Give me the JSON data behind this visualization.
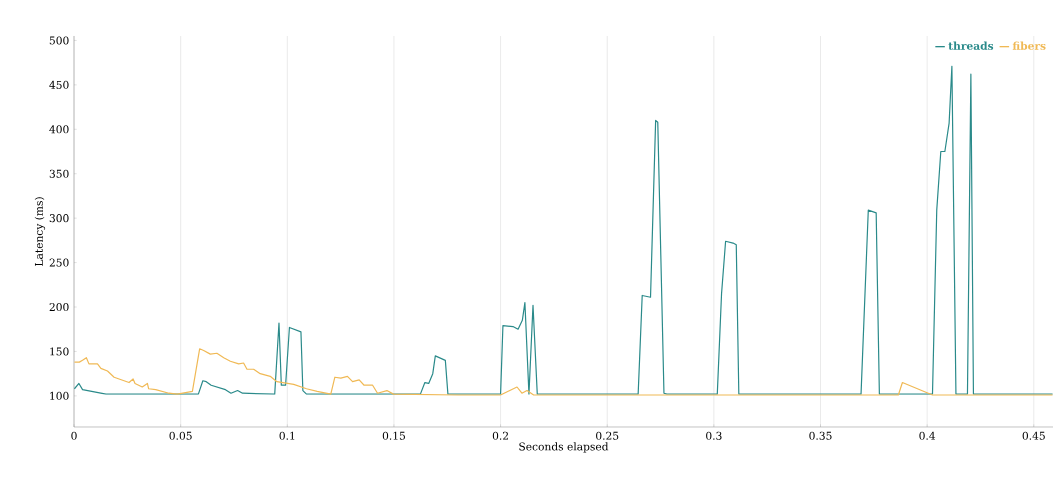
{
  "chart_data": {
    "type": "line",
    "xlabel": "Seconds elapsed",
    "ylabel": "Latency (ms)",
    "xlim": [
      0,
      0.459
    ],
    "ylim": [
      65,
      505
    ],
    "xticks": [
      0,
      0.05,
      0.1,
      0.15,
      0.2,
      0.25,
      0.3,
      0.35,
      0.4,
      0.45
    ],
    "yticks": [
      100,
      150,
      200,
      250,
      300,
      350,
      400,
      450,
      500
    ],
    "grid": "x",
    "legend": "top right",
    "marker": "none",
    "line_style": "solid",
    "series": [
      {
        "name": "threads",
        "color": "#2a8a8a",
        "x": [
          0.0002,
          0.0023,
          0.004,
          0.015,
          0.03,
          0.045,
          0.0583,
          0.0604,
          0.062,
          0.0643,
          0.071,
          0.0736,
          0.0767,
          0.079,
          0.0941,
          0.0961,
          0.0972,
          0.0992,
          0.101,
          0.1064,
          0.1073,
          0.109,
          0.13,
          0.1624,
          0.1645,
          0.1663,
          0.1682,
          0.1694,
          0.1741,
          0.1753,
          0.2,
          0.2011,
          0.2058,
          0.2082,
          0.2102,
          0.2114,
          0.2133,
          0.2152,
          0.2172,
          0.24,
          0.2645,
          0.2664,
          0.2703,
          0.2727,
          0.2737,
          0.2766,
          0.278,
          0.3016,
          0.3036,
          0.3055,
          0.309,
          0.3105,
          0.3117,
          0.369,
          0.3724,
          0.3761,
          0.3776,
          0.4025,
          0.4045,
          0.4064,
          0.4083,
          0.4103,
          0.4116,
          0.4135,
          0.4189,
          0.4205,
          0.4217,
          0.4588
        ],
        "values": [
          108,
          114,
          107,
          102,
          102,
          102,
          102,
          117,
          116,
          112,
          107,
          103,
          106,
          103,
          102,
          182,
          112,
          112,
          177,
          172,
          106,
          102,
          102,
          102,
          115,
          114,
          125,
          145,
          140,
          102,
          102,
          179,
          178,
          175,
          185,
          205,
          102,
          202,
          102,
          102,
          102,
          213,
          211,
          410,
          408,
          103,
          102,
          102,
          215,
          274,
          272,
          270,
          102,
          102,
          309,
          306,
          102,
          102,
          309,
          375,
          375,
          407,
          471,
          102,
          102,
          462,
          102,
          102
        ]
      },
      {
        "name": "fibers",
        "color": "#f0b955",
        "x": [
          0.0002,
          0.0025,
          0.004,
          0.0058,
          0.007,
          0.011,
          0.0126,
          0.0157,
          0.0188,
          0.0258,
          0.0277,
          0.0286,
          0.032,
          0.0344,
          0.035,
          0.0383,
          0.0414,
          0.0445,
          0.0484,
          0.0555,
          0.0589,
          0.0608,
          0.0639,
          0.067,
          0.0702,
          0.0733,
          0.0772,
          0.0795,
          0.0811,
          0.0842,
          0.0873,
          0.092,
          0.0951,
          0.103,
          0.109,
          0.114,
          0.1204,
          0.1223,
          0.1251,
          0.1282,
          0.1306,
          0.1337,
          0.136,
          0.14,
          0.1423,
          0.1467,
          0.1498,
          0.18,
          0.2,
          0.2077,
          0.21,
          0.2124,
          0.2155,
          0.3,
          0.3865,
          0.3884,
          0.4025,
          0.4588
        ],
        "values": [
          138,
          138,
          140,
          143,
          136,
          136,
          131,
          128,
          121,
          115,
          119,
          114,
          110,
          114,
          108,
          107,
          105,
          103,
          102,
          105,
          153,
          151,
          147,
          148,
          143,
          139,
          136,
          137,
          130,
          130,
          125,
          122,
          116,
          113,
          108,
          105,
          102,
          121,
          120,
          122,
          116,
          118,
          112,
          112,
          103,
          106,
          102,
          101,
          101,
          110,
          103,
          106,
          101,
          101,
          101,
          115,
          101,
          101
        ]
      }
    ]
  }
}
